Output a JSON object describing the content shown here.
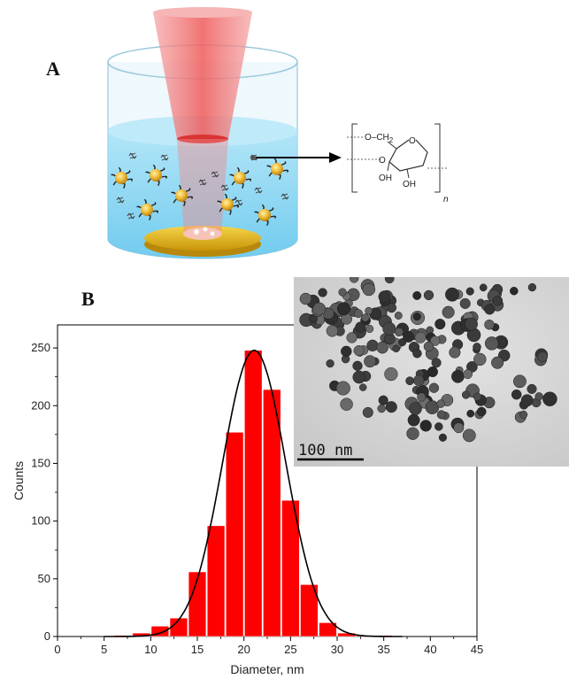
{
  "panels": {
    "a": {
      "letter": "A"
    },
    "b": {
      "letter": "B"
    }
  },
  "chemical_structure": {
    "o_ch2": "O–CH",
    "o_ch2_sub": "2",
    "ring_o": "O",
    "o_left": "O",
    "oh_1": "OH",
    "oh_2": "OH",
    "n": "n"
  },
  "tem_inset": {
    "scale_bar_label": "100 nm"
  },
  "colors": {
    "bar_fill": "#ff0000",
    "fit_line": "#000000",
    "laser": "#f26b6b",
    "liquid": "#7fd3f2",
    "target_disk": "#e8b80f",
    "nanoparticle": "#e8b030"
  },
  "chart_data": {
    "type": "bar",
    "xlabel": "Diameter, nm",
    "ylabel": "Counts",
    "xlim": [
      0,
      45
    ],
    "ylim": [
      0,
      270
    ],
    "x_ticks": [
      0,
      5,
      10,
      15,
      20,
      25,
      30,
      35,
      40,
      45
    ],
    "y_ticks": [
      0,
      50,
      100,
      150,
      200,
      250
    ],
    "bin_width": 2,
    "bins": [
      {
        "x": 7,
        "count": 1
      },
      {
        "x": 9,
        "count": 3
      },
      {
        "x": 11,
        "count": 9
      },
      {
        "x": 13,
        "count": 16
      },
      {
        "x": 15,
        "count": 56
      },
      {
        "x": 17,
        "count": 96
      },
      {
        "x": 19,
        "count": 177
      },
      {
        "x": 21,
        "count": 248
      },
      {
        "x": 23,
        "count": 214
      },
      {
        "x": 25,
        "count": 118
      },
      {
        "x": 27,
        "count": 45
      },
      {
        "x": 29,
        "count": 12
      },
      {
        "x": 31,
        "count": 3
      },
      {
        "x": 33,
        "count": 1
      },
      {
        "x": 35,
        "count": 1
      }
    ],
    "fit": {
      "type": "gaussian",
      "center": 21.1,
      "amplitude": 248,
      "sigma": 3.4
    }
  }
}
